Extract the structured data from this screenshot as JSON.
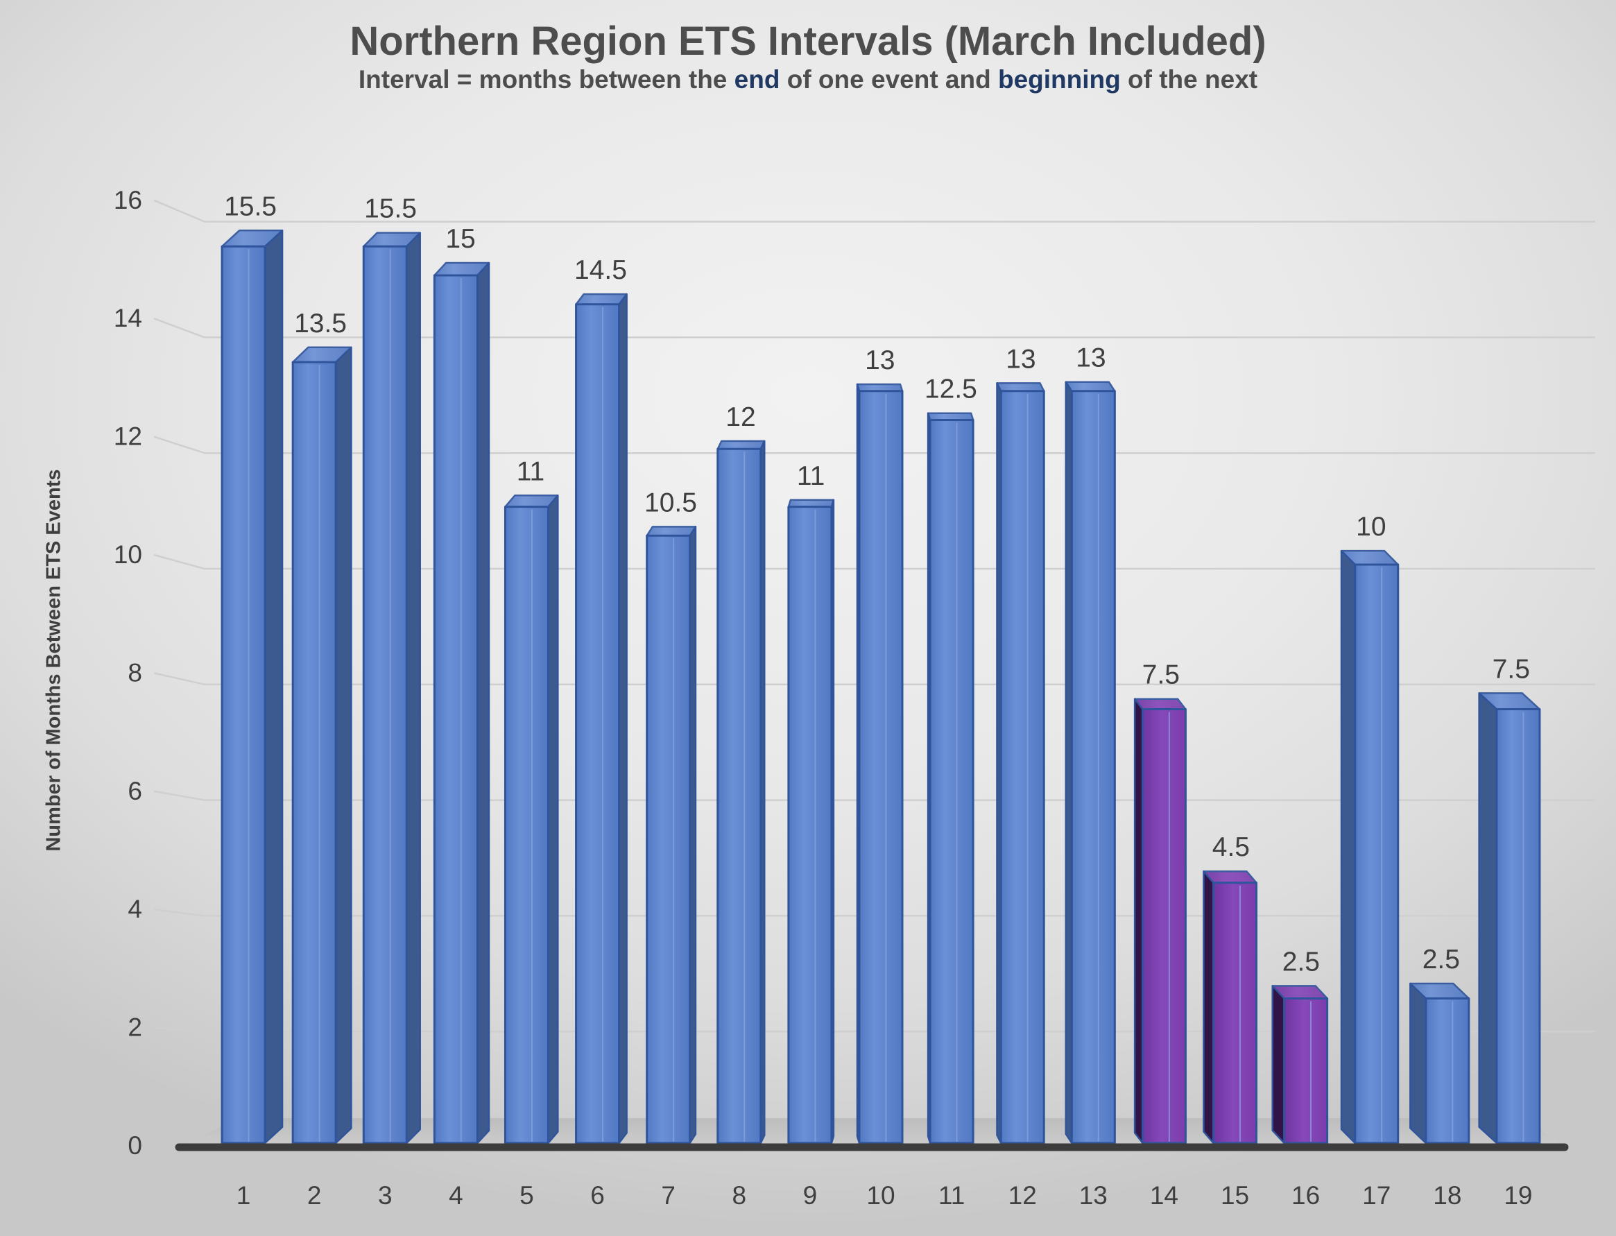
{
  "chart_data": {
    "type": "bar",
    "style": "3d-column",
    "title": "Northern Region ETS Intervals (March Included)",
    "subtitle_segments": [
      {
        "text": "Interval = months between the ",
        "emphasis": false
      },
      {
        "text": "end",
        "emphasis": true
      },
      {
        "text": " of one event and ",
        "emphasis": false
      },
      {
        "text": "beginning",
        "emphasis": true
      },
      {
        "text": " of the next",
        "emphasis": false
      }
    ],
    "ylabel": "Number of Months Between ETS Events",
    "xlabel": "",
    "categories": [
      "1",
      "2",
      "3",
      "4",
      "5",
      "6",
      "7",
      "8",
      "9",
      "10",
      "11",
      "12",
      "13",
      "14",
      "15",
      "16",
      "17",
      "18",
      "19"
    ],
    "values": [
      15.5,
      13.5,
      15.5,
      15,
      11,
      14.5,
      10.5,
      12,
      11,
      13,
      12.5,
      13,
      13,
      7.5,
      4.5,
      2.5,
      10,
      2.5,
      7.5
    ],
    "data_labels": [
      "15.5",
      "13.5",
      "15.5",
      "15",
      "11",
      "14.5",
      "10.5",
      "12",
      "11",
      "13",
      "12.5",
      "13",
      "13",
      "7.5",
      "4.5",
      "2.5",
      "10",
      "2.5",
      "7.5"
    ],
    "highlighted_categories": [
      "14",
      "15",
      "16"
    ],
    "ylim": [
      0,
      16
    ],
    "yticks": [
      0,
      2,
      4,
      6,
      8,
      10,
      12,
      14,
      16
    ],
    "grid": "horizontal",
    "legend": "none",
    "colors": {
      "bar_blue_front_dark": "#5179C3",
      "bar_blue_front_mid": "#6B90D6",
      "bar_blue_front": "#6286CE",
      "bar_blue_side": "#3D5A8E",
      "bar_edge": "#2F549B",
      "bar_purple_front_dark": "#6F35A0",
      "bar_purple_front_mid": "#8748BA",
      "bar_purple_front": "#7B3DAB",
      "bar_purple_side": "#301447",
      "title_color": "#4D4D4D",
      "subtitle_emphasis_color": "#1F3864",
      "axis_text_color": "#3F3F3F",
      "data_label_color": "#3F3F3F",
      "gridline_color": "#CFCFCF",
      "baseline_color": "#3C3C3C",
      "floor_light": "#CDCDCD",
      "floor_dark": "#BDBDBD"
    }
  }
}
